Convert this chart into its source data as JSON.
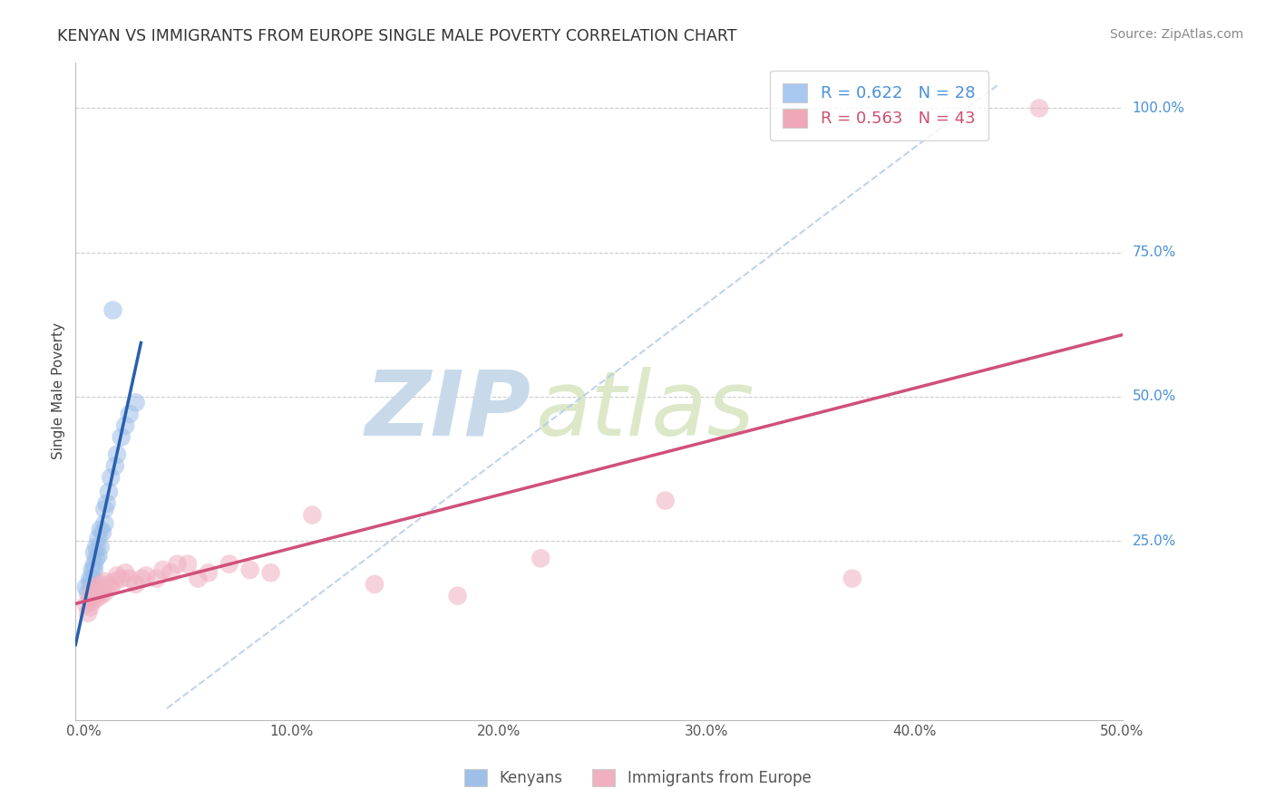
{
  "title": "KENYAN VS IMMIGRANTS FROM EUROPE SINGLE MALE POVERTY CORRELATION CHART",
  "source": "Source: ZipAtlas.com",
  "ylabel": "Single Male Poverty",
  "ytick_labels": [
    "25.0%",
    "50.0%",
    "75.0%",
    "100.0%"
  ],
  "ytick_values": [
    0.25,
    0.5,
    0.75,
    1.0
  ],
  "xtick_labels": [
    "0.0%",
    "10.0%",
    "20.0%",
    "30.0%",
    "40.0%",
    "50.0%"
  ],
  "xtick_values": [
    0,
    0.1,
    0.2,
    0.3,
    0.4,
    0.5
  ],
  "xlim": [
    -0.004,
    0.5
  ],
  "ylim": [
    -0.06,
    1.08
  ],
  "legend_entries": [
    {
      "label": "R = 0.622   N = 28",
      "color": "#a8c8f0"
    },
    {
      "label": "R = 0.563   N = 43",
      "color": "#f0a8b8"
    }
  ],
  "kenyan_x": [
    0.001,
    0.002,
    0.003,
    0.003,
    0.004,
    0.004,
    0.005,
    0.005,
    0.005,
    0.006,
    0.006,
    0.007,
    0.007,
    0.008,
    0.008,
    0.009,
    0.01,
    0.01,
    0.011,
    0.012,
    0.013,
    0.015,
    0.016,
    0.018,
    0.02,
    0.022,
    0.025,
    0.014
  ],
  "kenyan_y": [
    0.17,
    0.16,
    0.175,
    0.185,
    0.185,
    0.2,
    0.21,
    0.23,
    0.2,
    0.22,
    0.24,
    0.225,
    0.255,
    0.24,
    0.27,
    0.265,
    0.28,
    0.305,
    0.315,
    0.335,
    0.36,
    0.38,
    0.4,
    0.43,
    0.45,
    0.47,
    0.49,
    0.65
  ],
  "europe_x": [
    0.001,
    0.002,
    0.003,
    0.003,
    0.004,
    0.004,
    0.005,
    0.005,
    0.006,
    0.006,
    0.007,
    0.008,
    0.008,
    0.009,
    0.01,
    0.01,
    0.012,
    0.013,
    0.015,
    0.016,
    0.018,
    0.02,
    0.022,
    0.025,
    0.028,
    0.03,
    0.035,
    0.038,
    0.042,
    0.045,
    0.05,
    0.055,
    0.06,
    0.07,
    0.08,
    0.09,
    0.11,
    0.14,
    0.18,
    0.22,
    0.28,
    0.37,
    0.46
  ],
  "europe_y": [
    0.14,
    0.125,
    0.135,
    0.15,
    0.145,
    0.16,
    0.155,
    0.17,
    0.15,
    0.165,
    0.16,
    0.155,
    0.175,
    0.165,
    0.16,
    0.18,
    0.175,
    0.17,
    0.18,
    0.19,
    0.185,
    0.195,
    0.185,
    0.175,
    0.185,
    0.19,
    0.185,
    0.2,
    0.195,
    0.21,
    0.21,
    0.185,
    0.195,
    0.21,
    0.2,
    0.195,
    0.295,
    0.175,
    0.155,
    0.22,
    0.32,
    0.185,
    1.0
  ],
  "kenyan_line_color": "#2a5fae",
  "europe_line_color": "#d0507a",
  "kenyan_marker_color": "#9dbfe8",
  "europe_marker_color": "#f0b0c0",
  "ref_line_color": "#b0c8e8",
  "background_color": "#ffffff",
  "grid_color": "#cccccc",
  "title_color": "#333333",
  "source_color": "#888888",
  "watermark_zip": "ZIP",
  "watermark_atlas": "atlas",
  "watermark_color": "#dce8f0"
}
